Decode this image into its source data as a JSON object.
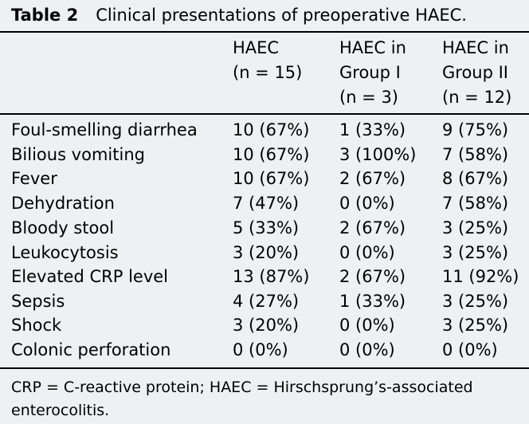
{
  "caption": {
    "label": "Table 2",
    "title": "Clinical presentations of preoperative HAEC."
  },
  "columns": [
    {
      "line1": "HAEC",
      "line2": "(n = 15)",
      "line3": ""
    },
    {
      "line1": "HAEC in",
      "line2": "Group I",
      "line3": "(n = 3)"
    },
    {
      "line1": "HAEC in",
      "line2": "Group II",
      "line3": "(n = 12)"
    }
  ],
  "rows": [
    {
      "label": "Foul-smelling diarrhea",
      "c1": "10 (67%)",
      "c2": "1 (33%)",
      "c3": "9 (75%)"
    },
    {
      "label": "Bilious vomiting",
      "c1": "10 (67%)",
      "c2": "3 (100%)",
      "c3": "7 (58%)"
    },
    {
      "label": "Fever",
      "c1": "10 (67%)",
      "c2": "2 (67%)",
      "c3": "8 (67%)"
    },
    {
      "label": "Dehydration",
      "c1": "7 (47%)",
      "c2": "0 (0%)",
      "c3": "7 (58%)"
    },
    {
      "label": "Bloody stool",
      "c1": "5 (33%)",
      "c2": "2 (67%)",
      "c3": "3 (25%)"
    },
    {
      "label": "Leukocytosis",
      "c1": "3 (20%)",
      "c2": "0 (0%)",
      "c3": "3 (25%)"
    },
    {
      "label": "Elevated CRP level",
      "c1": "13 (87%)",
      "c2": "2 (67%)",
      "c3": "11 (92%)"
    },
    {
      "label": "Sepsis",
      "c1": "4 (27%)",
      "c2": "1 (33%)",
      "c3": "3 (25%)"
    },
    {
      "label": "Shock",
      "c1": "3 (20%)",
      "c2": "0 (0%)",
      "c3": "3 (25%)"
    },
    {
      "label": "Colonic perforation",
      "c1": "0 (0%)",
      "c2": "0 (0%)",
      "c3": "0 (0%)"
    }
  ],
  "footnote": "CRP = C-reactive protein; HAEC = Hirschsprung’s-associated enterocolitis."
}
